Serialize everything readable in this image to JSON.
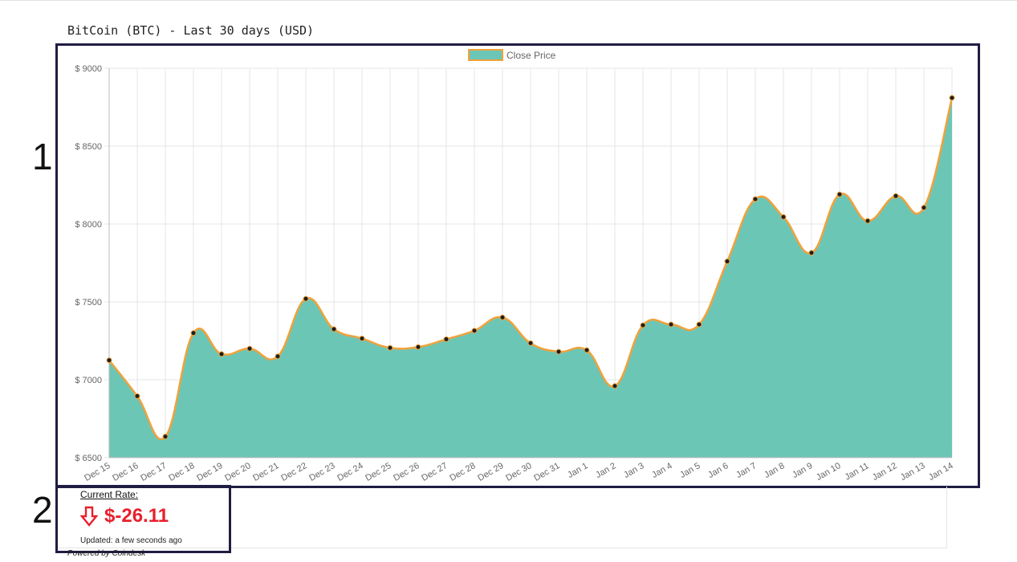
{
  "page": {
    "title": "BitCoin (BTC) - Last 30 days (USD)"
  },
  "markers": {
    "chart": "1",
    "rate": "2"
  },
  "chart_data": {
    "type": "area",
    "legend": {
      "label": "Close Price",
      "position": "top-center"
    },
    "categories": [
      "Dec 15",
      "Dec 16",
      "Dec 17",
      "Dec 18",
      "Dec 19",
      "Dec 20",
      "Dec 21",
      "Dec 22",
      "Dec 23",
      "Dec 24",
      "Dec 25",
      "Dec 26",
      "Dec 27",
      "Dec 28",
      "Dec 29",
      "Dec 30",
      "Dec 31",
      "Jan 1",
      "Jan 2",
      "Jan 3",
      "Jan 4",
      "Jan 5",
      "Jan 6",
      "Jan 7",
      "Jan 8",
      "Jan 9",
      "Jan 10",
      "Jan 11",
      "Jan 12",
      "Jan 13",
      "Jan 14"
    ],
    "series": [
      {
        "name": "Close Price",
        "values": [
          7125,
          6895,
          6635,
          7300,
          7165,
          7200,
          7150,
          7520,
          7325,
          7265,
          7205,
          7210,
          7260,
          7315,
          7400,
          7235,
          7180,
          7190,
          6960,
          7350,
          7355,
          7355,
          7760,
          8160,
          8045,
          7815,
          8190,
          8020,
          8180,
          8105,
          8810
        ]
      }
    ],
    "ylim": [
      6500,
      9000
    ],
    "yticks": [
      6500,
      7000,
      7500,
      8000,
      8500,
      9000
    ],
    "ytick_labels": [
      "$ 6500",
      "$ 7000",
      "$ 7500",
      "$ 8000",
      "$ 8500",
      "$ 9000"
    ],
    "grid": true,
    "colors": {
      "fill": "#6cc6b6",
      "line": "#f0a23c",
      "point": "#1e1e1e",
      "grid": "#e6e6e6"
    }
  },
  "rate": {
    "label": "Current Rate:",
    "value": "$-26.11",
    "updated": "Updated: a few seconds ago",
    "powered_by": "Powered by Coindesk",
    "direction_icon": "arrow-down-icon",
    "color": "#e8202c"
  }
}
